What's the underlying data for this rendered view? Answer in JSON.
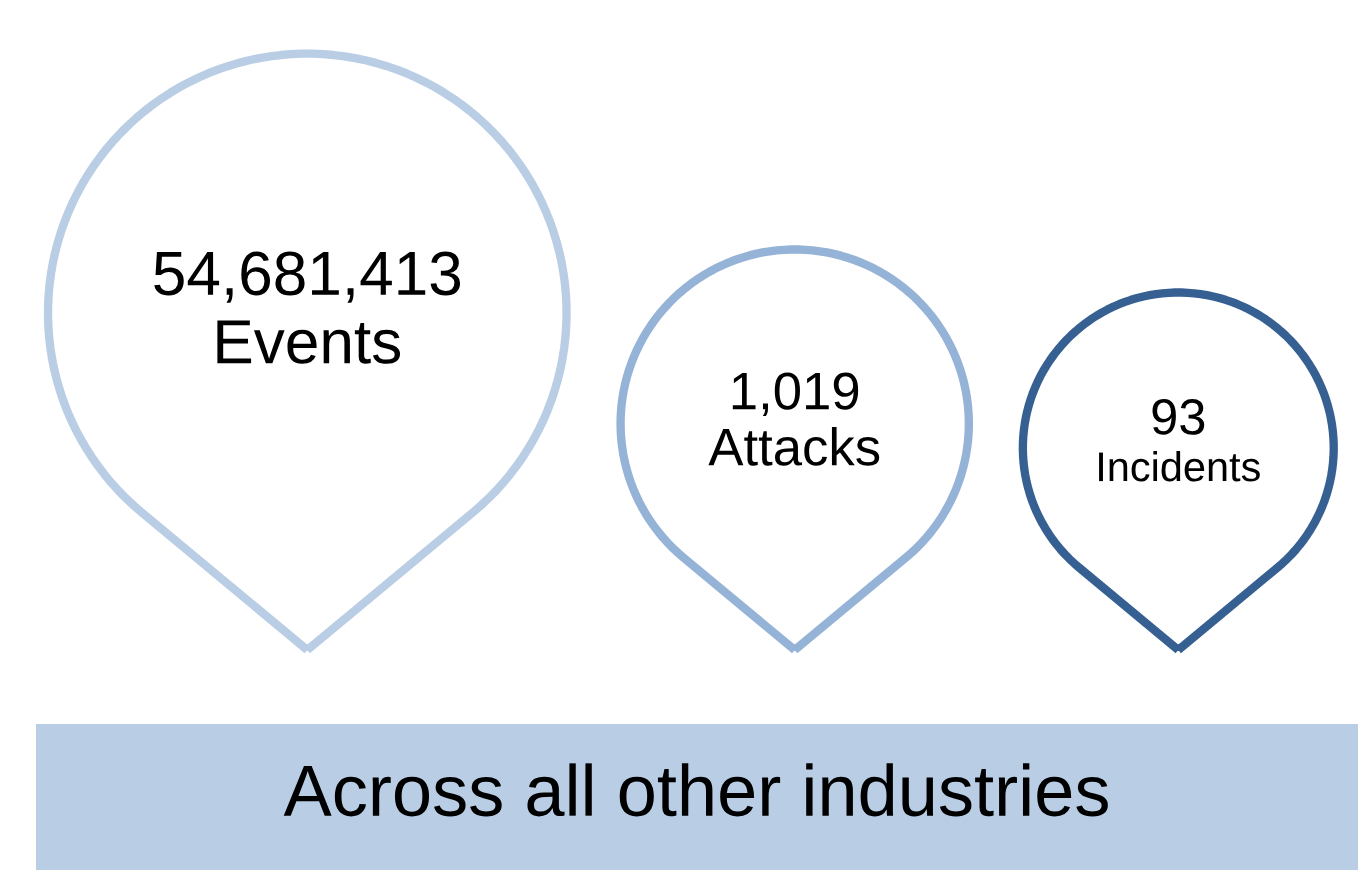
{
  "chart_data": {
    "type": "other",
    "title": "Across all other industries",
    "categories": [
      "Events",
      "Attacks",
      "Incidents"
    ],
    "values": [
      54681413,
      1019,
      93
    ],
    "value_labels": [
      "54,681,413",
      "1,019",
      "93"
    ],
    "colors": [
      "#b9cde5",
      "#95b3d7",
      "#366092"
    ]
  }
}
